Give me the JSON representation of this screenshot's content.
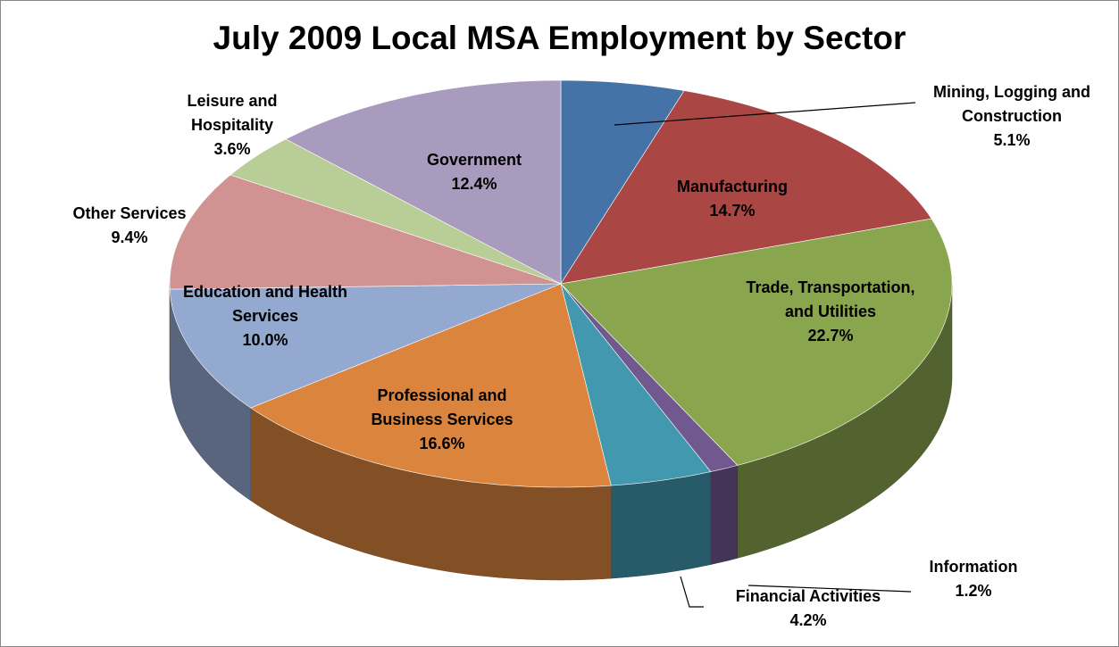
{
  "chart_data": {
    "type": "pie3d",
    "title": "July 2009 Local MSA Employment by Sector",
    "categories": [
      "Mining, Logging and Construction",
      "Manufacturing",
      "Trade, Transportation, and Utilities",
      "Information",
      "Financial Activities",
      "Professional and Business Services",
      "Education and Health Services",
      "Other Services",
      "Leisure and Hospitality",
      "Government"
    ],
    "values": [
      5.1,
      14.7,
      22.7,
      1.2,
      4.2,
      16.6,
      10.0,
      9.4,
      3.6,
      12.4
    ],
    "value_labels": [
      "5.1%",
      "14.7%",
      "22.7%",
      "1.2%",
      "4.2%",
      "16.6%",
      "10.0%",
      "9.4%",
      "3.6%",
      "12.4%"
    ],
    "colors": [
      "#4572a7",
      "#aa4643",
      "#89a54e",
      "#71588f",
      "#4198af",
      "#db843d",
      "#93a9cf",
      "#d19392",
      "#b9cd96",
      "#a99bbd"
    ]
  }
}
